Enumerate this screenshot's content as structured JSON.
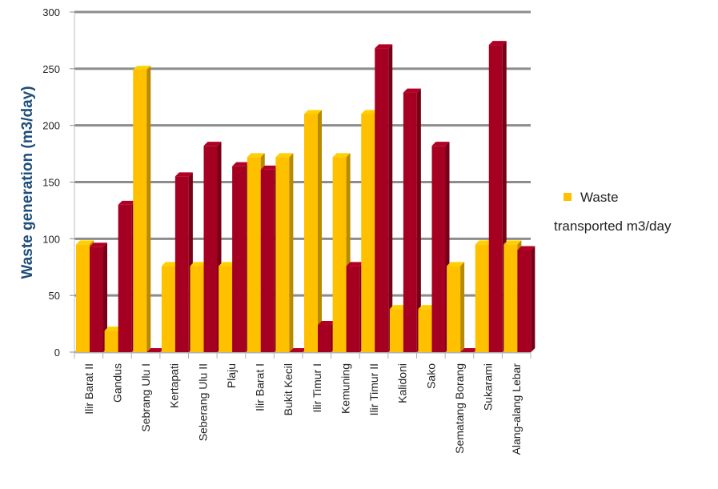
{
  "chart_data": {
    "type": "bar",
    "title": "",
    "xlabel": "",
    "ylabel": "Waste generation (m3/day)",
    "ylim": [
      0,
      300
    ],
    "yticks": [
      0,
      50,
      100,
      150,
      200,
      250,
      300
    ],
    "grid": true,
    "three_d": true,
    "legend_position": "right",
    "categories": [
      "Ilir Barat II",
      "Gandus",
      "Sebrang Ulu I",
      "Kertapati",
      "Seberang Ulu II",
      "Plaju",
      "Ilir Barat I",
      "Bukit Kecil",
      "Ilir Timur I",
      "Kemuning",
      "Ilir Timur II",
      "Kalidoni",
      "Sako",
      "Sematang Borang",
      "Sukarami",
      "Alang-alang Lebar"
    ],
    "series": [
      {
        "name": "Waste transported m3/day",
        "color": "#FFC000",
        "values": [
          95,
          19,
          249,
          76,
          76,
          76,
          172,
          172,
          210,
          172,
          210,
          38,
          38,
          76,
          95,
          95
        ]
      },
      {
        "color": "#A50021",
        "values": [
          93,
          130,
          0,
          155,
          182,
          164,
          161,
          0,
          24,
          76,
          268,
          229,
          182,
          0,
          271,
          90
        ]
      }
    ],
    "legend": {
      "entries": [
        {
          "label_line1": "Waste",
          "label_line2": "transported m3/day",
          "color": "#FFC000"
        }
      ]
    }
  }
}
